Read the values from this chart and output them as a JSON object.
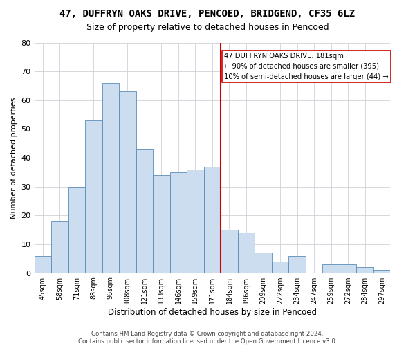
{
  "title1": "47, DUFFRYN OAKS DRIVE, PENCOED, BRIDGEND, CF35 6LZ",
  "title2": "Size of property relative to detached houses in Pencoed",
  "xlabel": "Distribution of detached houses by size in Pencoed",
  "ylabel": "Number of detached properties",
  "categories": [
    "45sqm",
    "58sqm",
    "71sqm",
    "83sqm",
    "96sqm",
    "108sqm",
    "121sqm",
    "133sqm",
    "146sqm",
    "159sqm",
    "171sqm",
    "184sqm",
    "196sqm",
    "209sqm",
    "222sqm",
    "234sqm",
    "247sqm",
    "259sqm",
    "272sqm",
    "284sqm",
    "297sqm"
  ],
  "values": [
    6,
    18,
    30,
    53,
    66,
    63,
    43,
    34,
    35,
    36,
    37,
    15,
    14,
    7,
    4,
    6,
    0,
    3,
    3,
    2,
    1
  ],
  "bar_color": "#ccddf0",
  "bar_edge_color": "#5b8db8",
  "vline_color": "#cc0000",
  "annotation_text": "47 DUFFRYN OAKS DRIVE: 181sqm\n← 90% of detached houses are smaller (395)\n10% of semi-detached houses are larger (44) →",
  "annotation_box_color": "#ffffff",
  "annotation_box_edge": "#cc0000",
  "ylim": [
    0,
    80
  ],
  "yticks": [
    0,
    10,
    20,
    30,
    40,
    50,
    60,
    70,
    80
  ],
  "grid_color": "#d0d0d8",
  "footer": "Contains HM Land Registry data © Crown copyright and database right 2024.\nContains public sector information licensed under the Open Government Licence v3.0.",
  "bg_color": "#ffffff",
  "title1_fontsize": 10,
  "title2_fontsize": 9,
  "vline_bar_index": 11
}
